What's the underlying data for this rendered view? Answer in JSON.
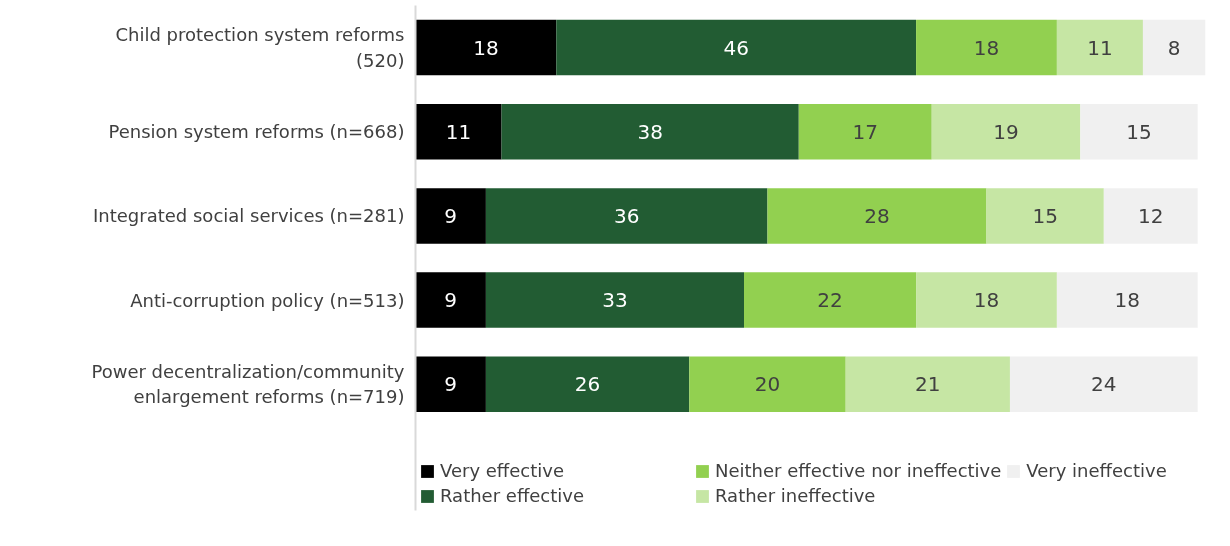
{
  "chart_data": {
    "type": "bar",
    "orientation": "horizontal",
    "stacked": true,
    "data_labels": true,
    "grid": false,
    "legend": "bottom",
    "categories": [
      "Child protection system reforms (520)",
      "Pension system reforms (n=668)",
      "Integrated social services (n=281)",
      "Anti-corruption policy (n=513)",
      "Power decentralization/community enlargement reforms (n=719)"
    ],
    "series": [
      {
        "name": "Very effective",
        "color": "#000000",
        "values": [
          18,
          11,
          9,
          9,
          9
        ]
      },
      {
        "name": "Rather effective",
        "color": "#225c33",
        "values": [
          46,
          38,
          36,
          33,
          26
        ]
      },
      {
        "name": "Neither effective nor ineffective",
        "color": "#92d050",
        "values": [
          18,
          17,
          28,
          22,
          20
        ]
      },
      {
        "name": "Rather ineffective",
        "color": "#c6e6a4",
        "values": [
          11,
          19,
          15,
          18,
          21
        ]
      },
      {
        "name": "Very ineffective",
        "color": "#f0f0f0",
        "values": [
          8,
          15,
          12,
          18,
          24
        ]
      }
    ]
  }
}
